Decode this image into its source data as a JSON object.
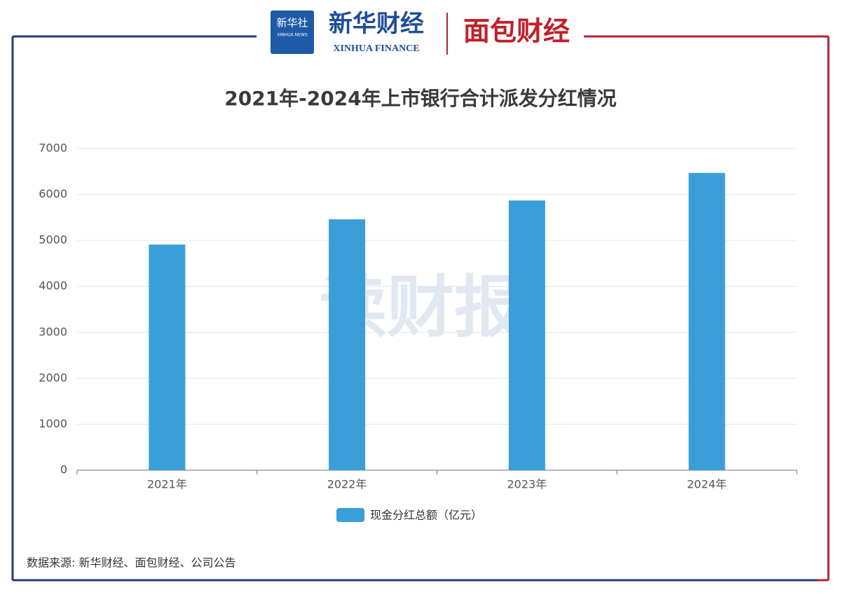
{
  "header": {
    "xinhua_news_cn": "新华社",
    "xinhua_news_en": "XINHUA NEWS",
    "xinhua_finance_cn": "新华财经",
    "xinhua_finance_en": "XINHUA FINANCE",
    "mianbao": "面包财经"
  },
  "chart_data": {
    "type": "bar",
    "title": "2021年-2024年上市银行合计派发分红情况",
    "categories": [
      "2021年",
      "2022年",
      "2023年",
      "2024年"
    ],
    "series": [
      {
        "name": "现金分红总额（亿元）",
        "color": "#3a9fd8",
        "values": [
          4910,
          5460,
          5870,
          6470
        ]
      }
    ],
    "ylim": [
      0,
      7000
    ],
    "yticks": [
      0,
      1000,
      2000,
      3000,
      4000,
      5000,
      6000,
      7000
    ],
    "grid": true,
    "legend": "bottom",
    "watermark": "读财报",
    "source": "数据来源: 新华财经、面包财经、公司公告"
  }
}
